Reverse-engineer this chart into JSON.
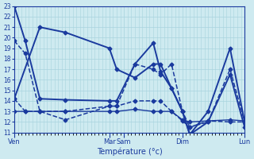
{
  "background_color": "#ceeaf0",
  "grid_color": "#a8d4de",
  "line_color": "#1a3a9e",
  "xlabel": "Température (°c)",
  "ylim": [
    11,
    23
  ],
  "yticks": [
    11,
    12,
    13,
    14,
    15,
    16,
    17,
    18,
    19,
    20,
    21,
    22,
    23
  ],
  "major_xtick_positions": [
    0,
    26,
    30,
    46,
    63
  ],
  "major_xtick_labels": [
    "Ven",
    "Mar",
    "Sam",
    "Dim",
    "Lun"
  ],
  "xlim": [
    0,
    63
  ],
  "series": [
    {
      "x": [
        0,
        3,
        7,
        14,
        26,
        28,
        33,
        38,
        40,
        43,
        46,
        48,
        53,
        59,
        63
      ],
      "y": [
        23.0,
        19.7,
        14.2,
        14.1,
        14.0,
        14.0,
        17.5,
        19.5,
        16.8,
        15.2,
        13.0,
        10.8,
        13.0,
        19.0,
        12.0
      ],
      "style": "-",
      "marker": "D",
      "markersize": 2.5,
      "linewidth": 1.4
    },
    {
      "x": [
        0,
        3,
        7,
        14,
        26,
        28,
        33,
        38,
        40,
        43,
        46,
        48,
        53,
        59,
        63
      ],
      "y": [
        19.7,
        18.5,
        13.0,
        13.0,
        13.5,
        13.5,
        17.5,
        17.0,
        16.5,
        17.5,
        13.0,
        11.5,
        12.0,
        17.0,
        12.0
      ],
      "style": "--",
      "marker": "D",
      "markersize": 2.5,
      "linewidth": 1.1
    },
    {
      "x": [
        0,
        7,
        14,
        26,
        28,
        33,
        38,
        40,
        43,
        46,
        48,
        53,
        59,
        63
      ],
      "y": [
        14.2,
        21.0,
        20.5,
        19.0,
        17.0,
        16.2,
        17.5,
        17.5,
        15.2,
        13.0,
        10.8,
        12.0,
        16.5,
        11.5
      ],
      "style": "-",
      "marker": "D",
      "markersize": 2.5,
      "linewidth": 1.4
    },
    {
      "x": [
        0,
        3,
        7,
        14,
        26,
        28,
        33,
        38,
        40,
        43,
        46,
        48,
        53,
        59,
        63
      ],
      "y": [
        14.2,
        13.0,
        13.0,
        12.2,
        13.5,
        13.5,
        14.0,
        14.0,
        14.0,
        13.0,
        12.1,
        11.5,
        12.1,
        12.0,
        12.0
      ],
      "style": "--",
      "marker": "D",
      "markersize": 2.5,
      "linewidth": 1.1
    },
    {
      "x": [
        0,
        3,
        7,
        14,
        26,
        28,
        33,
        38,
        40,
        43,
        46,
        48,
        53,
        59,
        63
      ],
      "y": [
        13.0,
        13.0,
        13.0,
        13.0,
        13.0,
        13.0,
        13.2,
        13.0,
        13.0,
        13.0,
        12.2,
        12.0,
        12.1,
        12.2,
        12.1
      ],
      "style": "-",
      "marker": "D",
      "markersize": 2.5,
      "linewidth": 1.0
    }
  ]
}
